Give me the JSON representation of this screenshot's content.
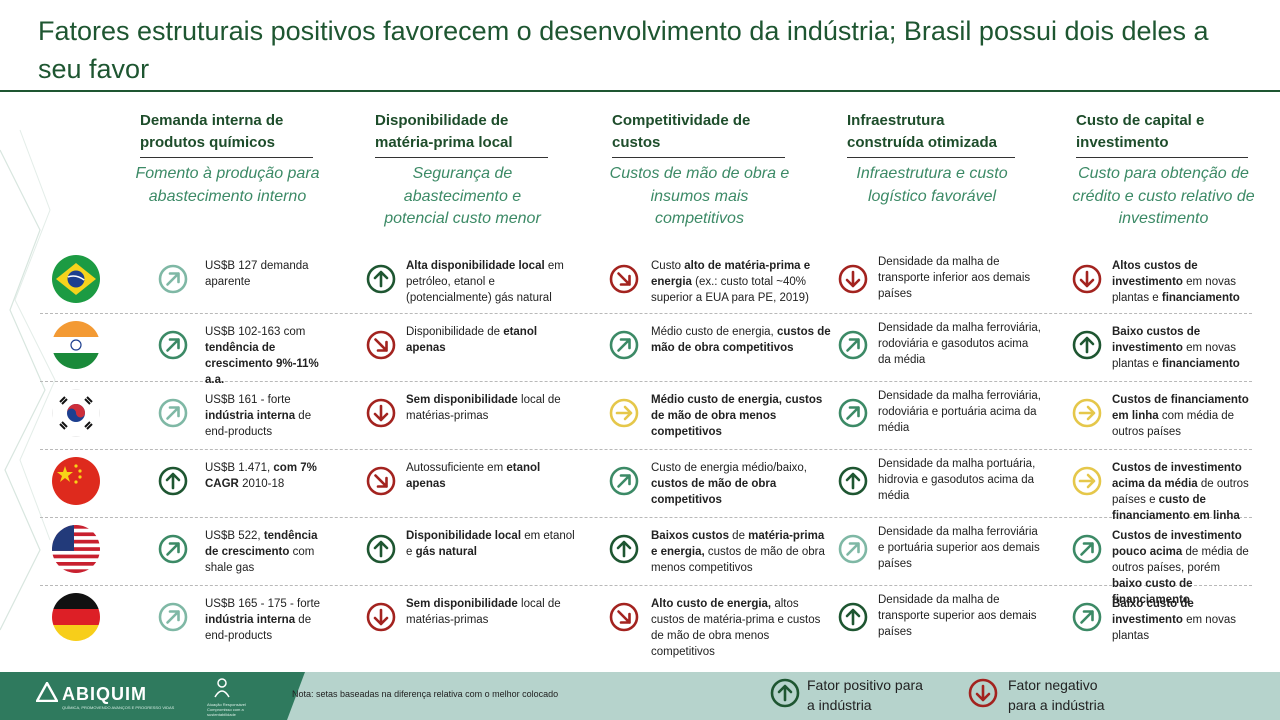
{
  "title": "Fatores estruturais positivos favorecem o desenvolvimento da indústria; Brasil possui dois deles a seu favor",
  "colors": {
    "positive": "#1e5631",
    "mid_positive": "#3c8a66",
    "light_positive": "#7fb8a5",
    "neutral": "#e5c74a",
    "negative": "#a3231f",
    "accent": "#3c8a66"
  },
  "columns": [
    {
      "heading": "Demanda interna de produtos químicos",
      "subtitle": "Fomento à produção para abastecimento interno"
    },
    {
      "heading": "Disponibilidade de matéria-prima local",
      "subtitle": "Segurança de abastecimento e potencial custo menor"
    },
    {
      "heading": "Competitividade de custos",
      "subtitle": "Custos de mão de obra e insumos mais competitivos"
    },
    {
      "heading": "Infraestrutura construída otimizada",
      "subtitle": "Infraestrutura e custo logístico favorável"
    },
    {
      "heading": "Custo de capital e investimento",
      "subtitle": "Custo para obtenção de crédito e custo relativo de investimento"
    }
  ],
  "rows": [
    {
      "country": "Brasil",
      "flag_icon": "flag-brazil-icon",
      "cells": [
        {
          "arrow": "up-right",
          "tone": "light",
          "text": [
            {
              "t": "US$B 127 demanda aparente",
              "b": false
            }
          ]
        },
        {
          "arrow": "up",
          "tone": "strong",
          "text": [
            {
              "t": "Alta disponibilidade local",
              "b": true
            },
            {
              "t": " em petróleo, etanol e (potencialmente) gás natural",
              "b": false
            }
          ]
        },
        {
          "arrow": "down-right",
          "tone": "negative",
          "text": [
            {
              "t": "Custo ",
              "b": false
            },
            {
              "t": "alto de matéria-prima e energia",
              "b": true
            },
            {
              "t": " (ex.: custo total ~40% superior a EUA para PE, 2019)",
              "b": false
            }
          ]
        },
        {
          "arrow": "down",
          "tone": "negative",
          "text": [
            {
              "t": "Densidade da malha de transporte inferior aos demais países",
              "b": false
            }
          ]
        },
        {
          "arrow": "down",
          "tone": "negative",
          "text": [
            {
              "t": "Altos custos de investimento",
              "b": true
            },
            {
              "t": " em novas plantas e ",
              "b": false
            },
            {
              "t": "financiamento",
              "b": true
            }
          ]
        }
      ]
    },
    {
      "country": "Índia",
      "flag_icon": "flag-india-icon",
      "cells": [
        {
          "arrow": "up-right",
          "tone": "medium",
          "text": [
            {
              "t": "US$B 102-163 com ",
              "b": false
            },
            {
              "t": "tendência de crescimento 9%-11% a.a.",
              "b": true
            }
          ]
        },
        {
          "arrow": "down-right",
          "tone": "negative",
          "text": [
            {
              "t": "Disponibilidade de ",
              "b": false
            },
            {
              "t": "etanol apenas",
              "b": true
            }
          ]
        },
        {
          "arrow": "up-right",
          "tone": "medium",
          "text": [
            {
              "t": "Médio custo de energia, ",
              "b": false
            },
            {
              "t": "custos de mão de obra competitivos",
              "b": true
            }
          ]
        },
        {
          "arrow": "up-right",
          "tone": "medium",
          "text": [
            {
              "t": "Densidade da malha ferroviária, rodoviária e gasodutos acima da média",
              "b": false
            }
          ]
        },
        {
          "arrow": "up",
          "tone": "strong",
          "text": [
            {
              "t": "Baixo custos de investimento",
              "b": true
            },
            {
              "t": " em novas plantas e ",
              "b": false
            },
            {
              "t": "financiamento",
              "b": true
            }
          ]
        }
      ]
    },
    {
      "country": "Coreia do Sul",
      "flag_icon": "flag-south-korea-icon",
      "cells": [
        {
          "arrow": "up-right",
          "tone": "light",
          "text": [
            {
              "t": "US$B 161 - forte ",
              "b": false
            },
            {
              "t": "indústria interna",
              "b": true
            },
            {
              "t": " de end-products",
              "b": false
            }
          ]
        },
        {
          "arrow": "down",
          "tone": "negative",
          "text": [
            {
              "t": "Sem disponibilidade",
              "b": true
            },
            {
              "t": " local de matérias-primas",
              "b": false
            }
          ]
        },
        {
          "arrow": "right",
          "tone": "neutral",
          "text": [
            {
              "t": "Médio custo de energia, custos de mão de obra menos competitivos",
              "b": true
            }
          ]
        },
        {
          "arrow": "up-right",
          "tone": "medium",
          "text": [
            {
              "t": "Densidade da malha ferroviária, rodoviária e portuária acima da média",
              "b": false
            }
          ]
        },
        {
          "arrow": "right",
          "tone": "neutral",
          "text": [
            {
              "t": "Custos de financiamento em linha",
              "b": true
            },
            {
              "t": " com média de outros países",
              "b": false
            }
          ]
        }
      ]
    },
    {
      "country": "China",
      "flag_icon": "flag-china-icon",
      "cells": [
        {
          "arrow": "up",
          "tone": "strong",
          "text": [
            {
              "t": "US$B 1.471, ",
              "b": false
            },
            {
              "t": "com 7% CAGR",
              "b": true
            },
            {
              "t": " 2010-18",
              "b": false
            }
          ]
        },
        {
          "arrow": "down-right",
          "tone": "negative",
          "text": [
            {
              "t": "Autossuficiente em ",
              "b": false
            },
            {
              "t": "etanol apenas",
              "b": true
            }
          ]
        },
        {
          "arrow": "up-right",
          "tone": "medium",
          "text": [
            {
              "t": "Custo de energia médio/baixo, ",
              "b": false
            },
            {
              "t": "custos de mão de obra competitivos",
              "b": true
            }
          ]
        },
        {
          "arrow": "up",
          "tone": "strong",
          "text": [
            {
              "t": "Densidade da malha portuária, hidrovia e gasodutos acima da média",
              "b": false
            }
          ]
        },
        {
          "arrow": "right",
          "tone": "neutral",
          "text": [
            {
              "t": "Custos de investimento acima da média",
              "b": true
            },
            {
              "t": " de outros países e ",
              "b": false
            },
            {
              "t": "custo de financiamento em linha",
              "b": true
            }
          ]
        }
      ]
    },
    {
      "country": "EUA",
      "flag_icon": "flag-usa-icon",
      "cells": [
        {
          "arrow": "up-right",
          "tone": "medium",
          "text": [
            {
              "t": "US$B 522, ",
              "b": false
            },
            {
              "t": "tendência de crescimento",
              "b": true
            },
            {
              "t": " com shale gas",
              "b": false
            }
          ]
        },
        {
          "arrow": "up",
          "tone": "strong",
          "text": [
            {
              "t": "Disponibilidade local",
              "b": true
            },
            {
              "t": " em etanol e ",
              "b": false
            },
            {
              "t": "gás natural",
              "b": true
            }
          ]
        },
        {
          "arrow": "up",
          "tone": "strong",
          "text": [
            {
              "t": "Baixos custos",
              "b": true
            },
            {
              "t": " de ",
              "b": false
            },
            {
              "t": "matéria-prima e energia,",
              "b": true
            },
            {
              "t": " custos de mão de obra menos competitivos",
              "b": false
            }
          ]
        },
        {
          "arrow": "up-right",
          "tone": "light",
          "text": [
            {
              "t": "Densidade da malha ferroviária e portuária superior aos demais países",
              "b": false
            }
          ]
        },
        {
          "arrow": "up-right",
          "tone": "medium",
          "text": [
            {
              "t": "Custos de investimento pouco acima",
              "b": true
            },
            {
              "t": " de média de outros países, porém ",
              "b": false
            },
            {
              "t": "baixo custo de financiamento",
              "b": true
            }
          ]
        }
      ]
    },
    {
      "country": "Alemanha",
      "flag_icon": "flag-germany-icon",
      "cells": [
        {
          "arrow": "up-right",
          "tone": "light",
          "text": [
            {
              "t": "US$B 165 - 175 - forte ",
              "b": false
            },
            {
              "t": "indústria interna",
              "b": true
            },
            {
              "t": " de end-products",
              "b": false
            }
          ]
        },
        {
          "arrow": "down",
          "tone": "negative",
          "text": [
            {
              "t": "Sem disponibilidade",
              "b": true
            },
            {
              "t": " local de matérias-primas",
              "b": false
            }
          ]
        },
        {
          "arrow": "down-right",
          "tone": "negative",
          "text": [
            {
              "t": "Alto custo de energia,",
              "b": true
            },
            {
              "t": " altos custos de matéria-prima e custos de mão de obra menos competitivos",
              "b": false
            }
          ]
        },
        {
          "arrow": "up",
          "tone": "strong",
          "text": [
            {
              "t": "Densidade da malha de transporte superior aos demais países",
              "b": false
            }
          ]
        },
        {
          "arrow": "up-right",
          "tone": "medium",
          "text": [
            {
              "t": "Baixo custo de investimento",
              "b": true
            },
            {
              "t": " em novas plantas",
              "b": false
            }
          ]
        }
      ]
    }
  ],
  "footer": {
    "logo": "ABIQUIM",
    "logo_tagline": "QUÍMICA, PROMOVENDO AVANÇOS E PROGRESSO VIDAS",
    "rc_label": "Atuação Responsável",
    "rc_tagline": "Compromisso com a sustentabilidade",
    "note": "Nota: setas baseadas na diferença relativa com o melhor colocado",
    "legend_positive": "Fator positivo para a indústria",
    "legend_negative": "Fator negativo para a indústria"
  }
}
